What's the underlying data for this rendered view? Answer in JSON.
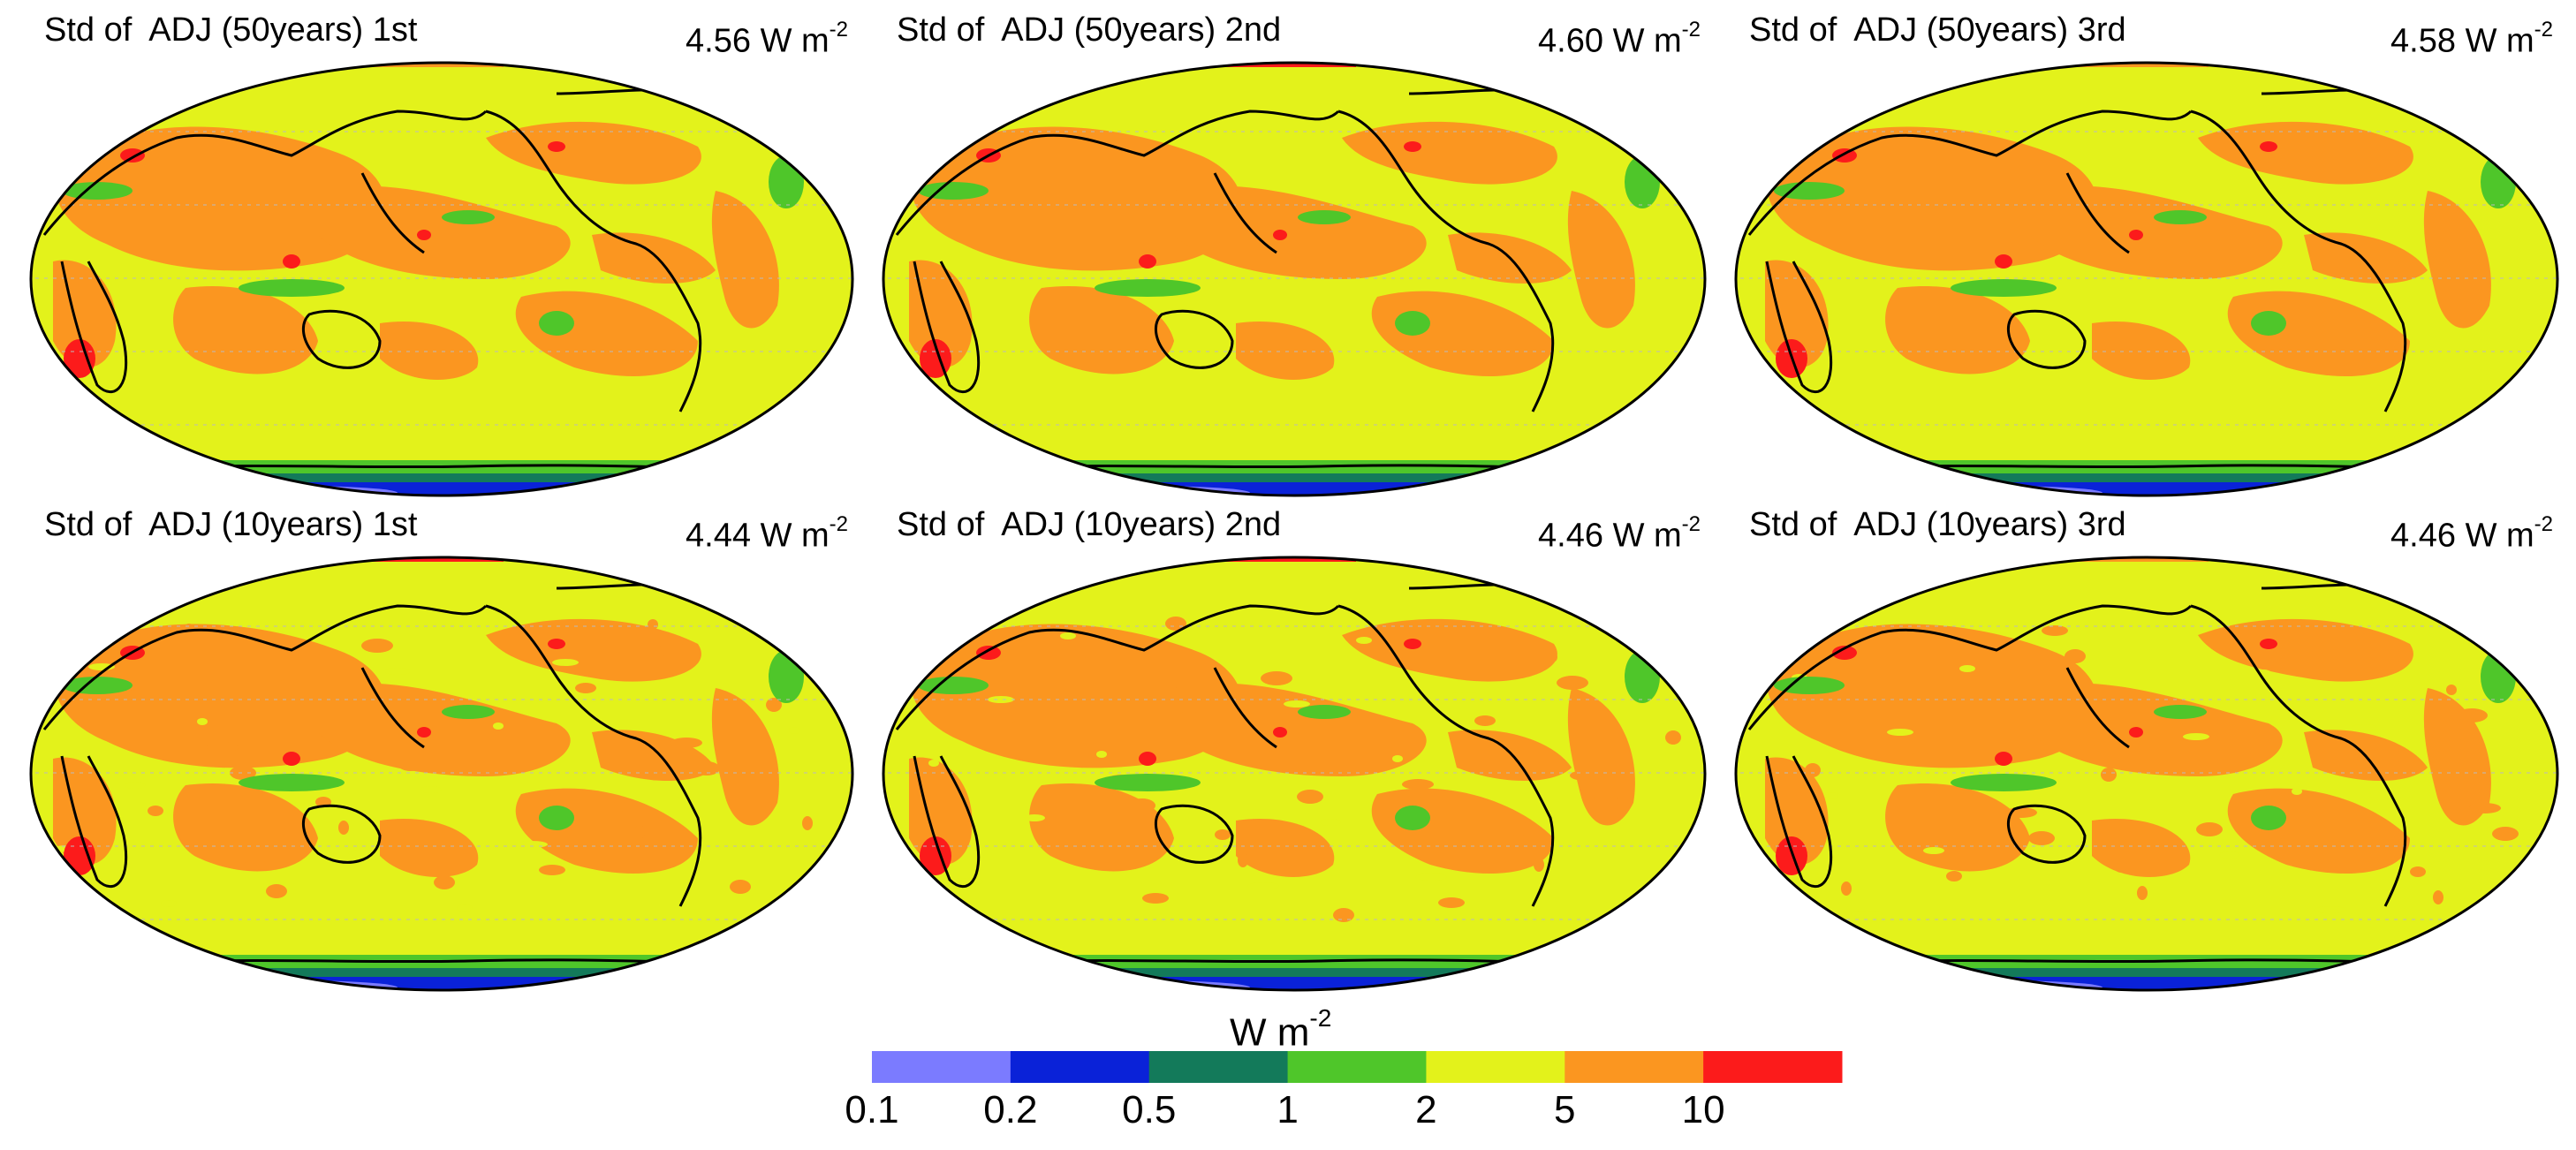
{
  "panels": [
    {
      "title": "Std of  ADJ (50years) 1st",
      "value_number": "4.56 W m",
      "value_exp": "-2"
    },
    {
      "title": "Std of  ADJ (50years) 2nd",
      "value_number": "4.60 W m",
      "value_exp": "-2"
    },
    {
      "title": "Std of  ADJ (50years) 3rd",
      "value_number": "4.58 W m",
      "value_exp": "-2"
    },
    {
      "title": "Std of  ADJ (10years) 1st",
      "value_number": "4.44 W m",
      "value_exp": "-2"
    },
    {
      "title": "Std of  ADJ (10years) 2nd",
      "value_number": "4.46 W m",
      "value_exp": "-2"
    },
    {
      "title": "Std of  ADJ (10years) 3rd",
      "value_number": "4.46 W m",
      "value_exp": "-2"
    }
  ],
  "colorbar": {
    "title_main": "W m",
    "title_exp": "-2",
    "labels": [
      "0.1",
      "0.2",
      "0.5",
      "1",
      "2",
      "5",
      "10"
    ],
    "colors": [
      "#7b7bff",
      "#0a22d8",
      "#137a5a",
      "#4fc62a",
      "#e3f21b",
      "#fb9620",
      "#fc1b1b"
    ]
  },
  "map_colors": {
    "ocean_base": "#e3f21b",
    "orange": "#fb9620",
    "red": "#fc1b1b",
    "green": "#4fc62a",
    "dark_green": "#137a5a",
    "blue": "#0a22d8",
    "light_blue": "#7b7bff"
  }
}
